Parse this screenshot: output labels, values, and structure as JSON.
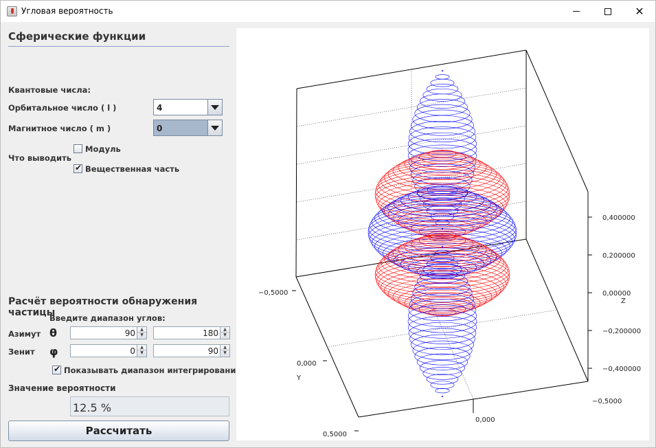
{
  "window": {
    "title": "Угловая вероятность"
  },
  "left_panel": {
    "heading": "Сферические функции",
    "quantum_title": "Квантовые числа:",
    "orbital_label": "Орбитальное число ( l )",
    "orbital_value": "4",
    "magnetic_label": "Магнитное число ( m )",
    "magnetic_value": "0",
    "output_label": "Что выводить",
    "modulus_label": "Модуль",
    "modulus_checked": false,
    "real_label": "Вещественная часть",
    "real_checked": true,
    "prob_heading": "Расчёт вероятности обнаружения частицы",
    "range_label": "Введите диапазон углов:",
    "azimuth_label": "Азимут",
    "azimuth_symbol": "θ",
    "azimuth_from": "90",
    "azimuth_to": "180",
    "zenith_label": "Зенит",
    "zenith_symbol": "φ",
    "zenith_from": "0",
    "zenith_to": "90",
    "show_range_label": "Показывать диапазон интегрирования",
    "show_range_checked": true,
    "prob_value_label": "Значение вероятности",
    "prob_value": "12.5 %",
    "calc_button": "Рассчитать"
  },
  "plot": {
    "z_ticks": [
      "0,400000",
      "0,200000",
      "0,00000",
      "−0,200000",
      "−0,400000"
    ],
    "z_label": "Z",
    "y_ticks": [
      "−0,5000",
      "0,000",
      "0,5000"
    ],
    "y_label": "Y",
    "x_ticks": [
      "0,000",
      "−0,5000"
    ],
    "colors": {
      "positive": "#ff0000",
      "negative": "#0000ff"
    }
  }
}
